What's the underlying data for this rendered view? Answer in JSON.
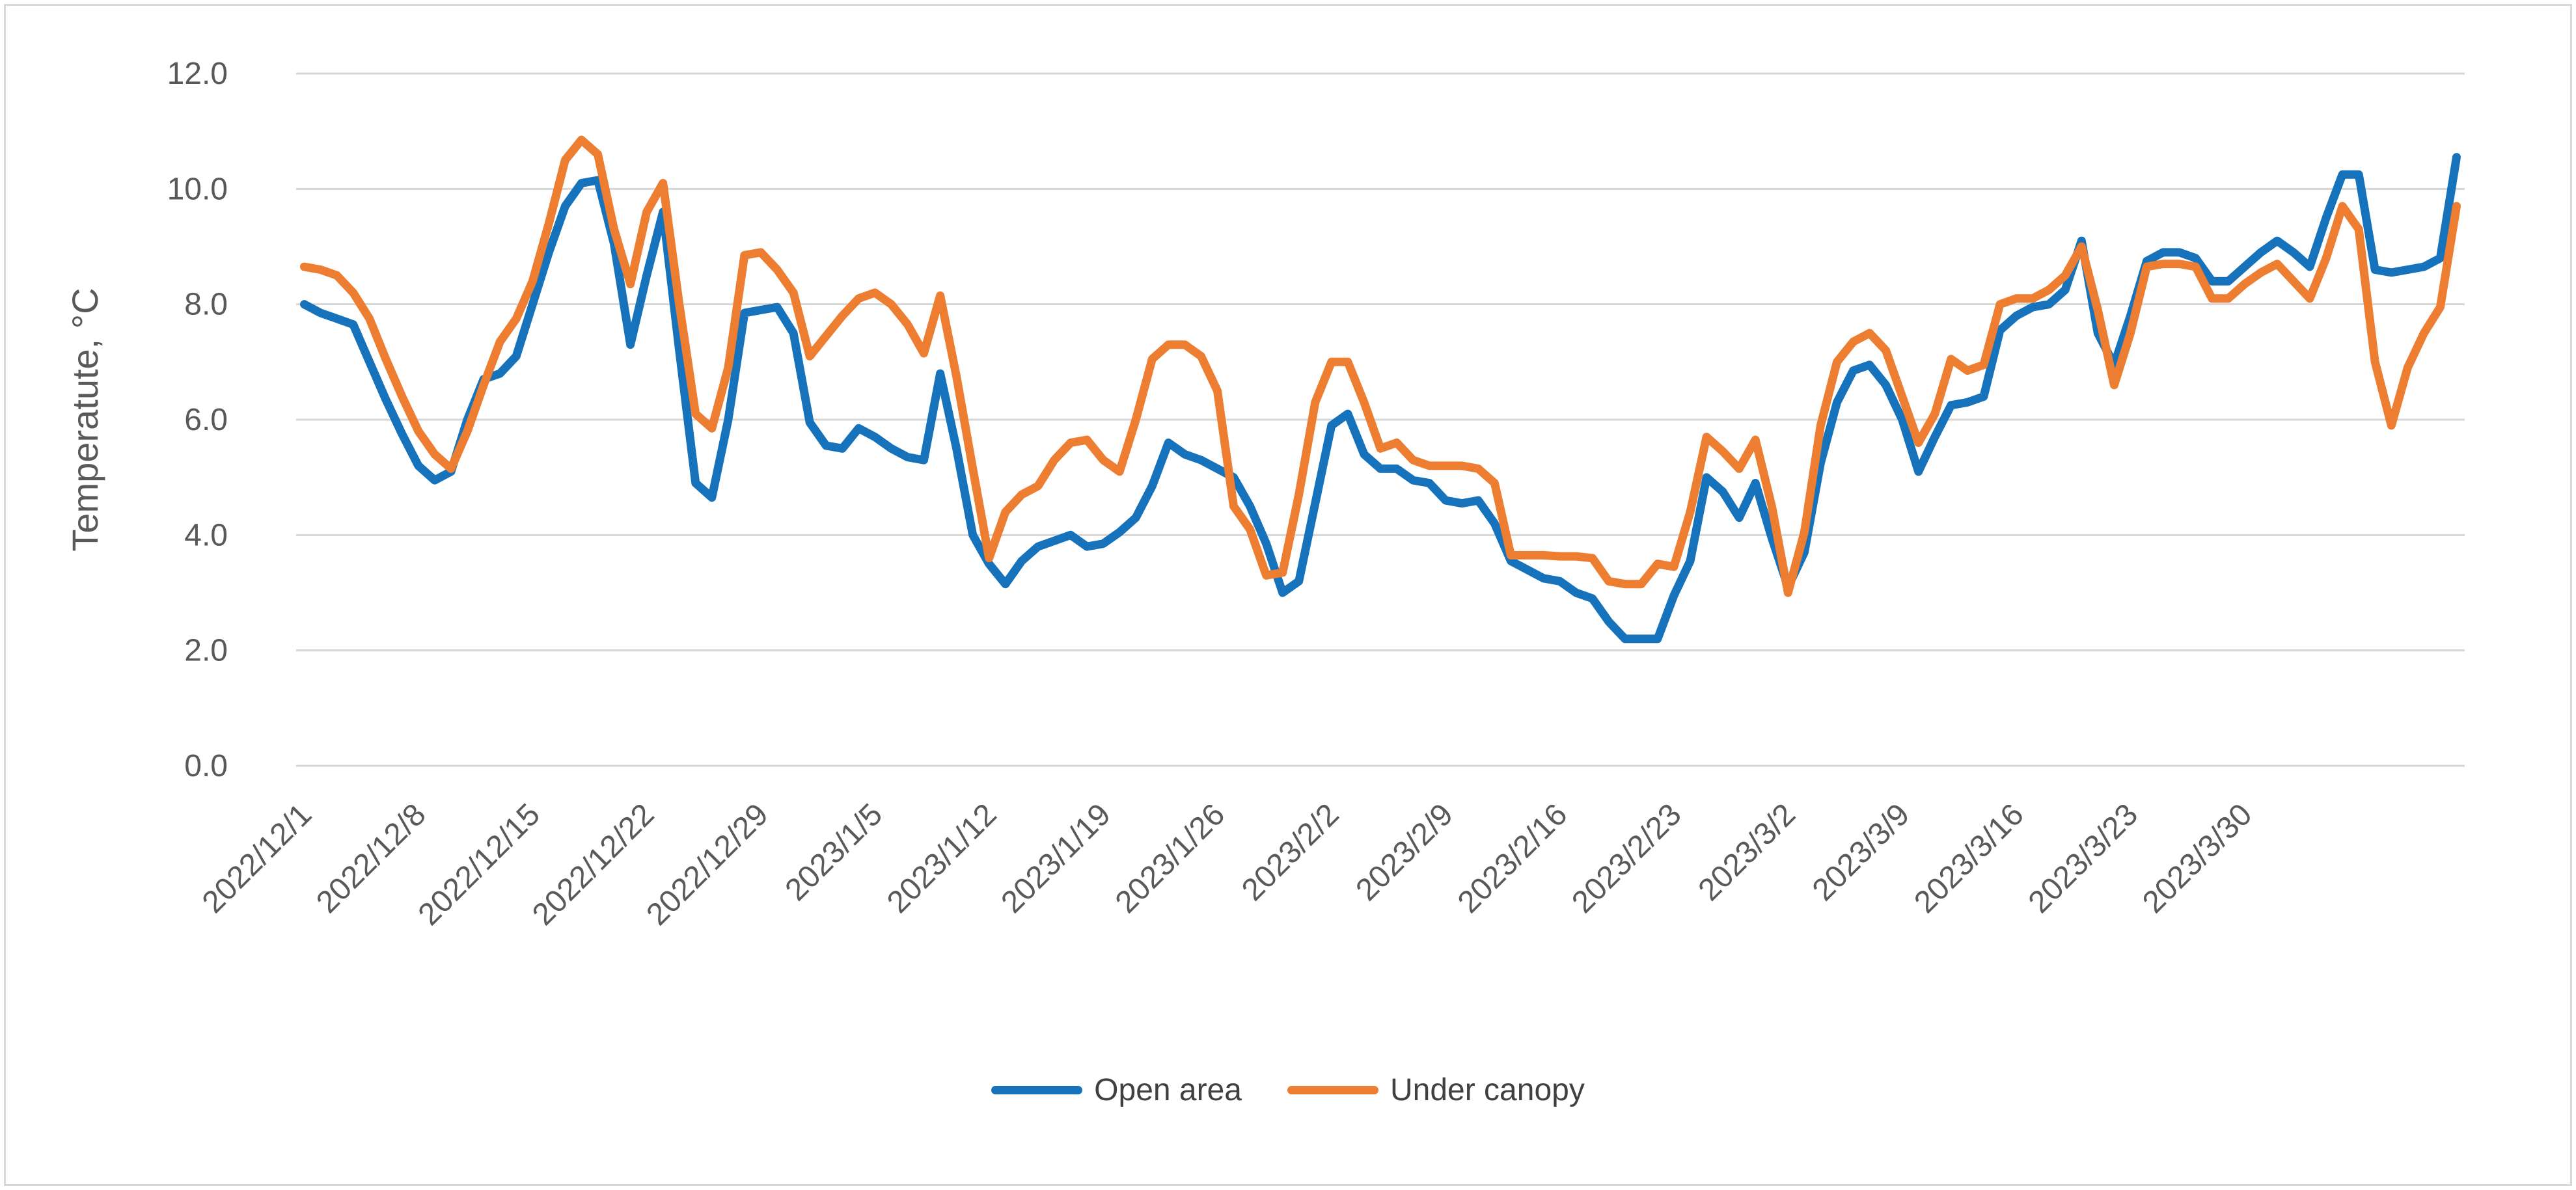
{
  "chart": {
    "background": "#ffffff",
    "border_color": "#d9d9d9",
    "gridline_color": "#d6d6d6",
    "axis_text_color": "#595959",
    "legend_text_color": "#404040",
    "y_axis_title": "Temperatute, °C",
    "y_tick_labels": [
      "12.0",
      "10.0",
      "8.0",
      "6.0",
      "4.0",
      "2.0",
      "0.0"
    ],
    "x_tick_labels": [
      "2022/12/1",
      "2022/12/8",
      "2022/12/15",
      "2022/12/22",
      "2022/12/29",
      "2023/1/5",
      "2023/1/12",
      "2023/1/19",
      "2023/1/26",
      "2023/2/2",
      "2023/2/9",
      "2023/2/16",
      "2023/2/23",
      "2023/3/2",
      "2023/3/9",
      "2023/3/16",
      "2023/3/23",
      "2023/3/30"
    ],
    "legend": {
      "open_area_label": "Open area",
      "under_canopy_label": "Under canopy"
    }
  },
  "chart_data": {
    "type": "line",
    "title": "",
    "xlabel": "",
    "ylabel": "Temperatute, °C",
    "ylim": [
      0,
      12
    ],
    "y_tick_step": 2,
    "grid": "horizontal",
    "legend_position": "bottom",
    "x_start_date": "2022/12/1",
    "x_frequency": "daily",
    "x_tick_every_days": 7,
    "x_tick_indices": [
      0,
      7,
      14,
      21,
      28,
      35,
      42,
      49,
      56,
      63,
      70,
      77,
      84,
      91,
      98,
      105,
      112,
      119
    ],
    "x_tick_labels": [
      "2022/12/1",
      "2022/12/8",
      "2022/12/15",
      "2022/12/22",
      "2022/12/29",
      "2023/1/5",
      "2023/1/12",
      "2023/1/19",
      "2023/1/26",
      "2023/2/2",
      "2023/2/9",
      "2023/2/16",
      "2023/2/23",
      "2023/3/2",
      "2023/3/9",
      "2023/3/16",
      "2023/3/23",
      "2023/3/30"
    ],
    "series": [
      {
        "name": "Open area",
        "color": "#1673bb",
        "values": [
          8.0,
          7.85,
          7.75,
          7.65,
          7.0,
          6.35,
          5.75,
          5.2,
          4.95,
          5.1,
          6.0,
          6.7,
          6.8,
          7.1,
          8.0,
          8.9,
          9.7,
          10.1,
          10.15,
          9.05,
          7.3,
          8.5,
          9.6,
          7.2,
          4.9,
          4.65,
          6.0,
          7.85,
          7.9,
          7.95,
          7.5,
          5.95,
          5.55,
          5.5,
          5.85,
          5.7,
          5.5,
          5.35,
          5.3,
          6.8,
          5.5,
          4.0,
          3.5,
          3.15,
          3.55,
          3.8,
          3.9,
          4.0,
          3.8,
          3.85,
          4.05,
          4.3,
          4.85,
          5.6,
          5.4,
          5.3,
          5.15,
          5.0,
          4.5,
          3.85,
          3.0,
          3.2,
          4.55,
          5.9,
          6.1,
          5.4,
          5.15,
          5.15,
          4.95,
          4.9,
          4.6,
          4.55,
          4.6,
          4.2,
          3.55,
          3.4,
          3.25,
          3.2,
          3.0,
          2.9,
          2.5,
          2.2,
          2.2,
          2.2,
          2.95,
          3.55,
          5.0,
          4.75,
          4.3,
          4.9,
          3.95,
          3.1,
          3.7,
          5.25,
          6.3,
          6.85,
          6.95,
          6.6,
          6.0,
          5.1,
          5.7,
          6.25,
          6.3,
          6.4,
          7.55,
          7.8,
          7.95,
          8.0,
          8.25,
          9.1,
          7.5,
          6.95,
          7.8,
          8.75,
          8.9,
          8.9,
          8.8,
          8.4,
          8.4,
          8.65,
          8.9,
          9.1,
          8.9,
          8.65,
          9.5,
          10.25,
          10.25,
          8.6,
          8.55,
          8.6,
          8.65,
          8.8,
          10.55
        ]
      },
      {
        "name": "Under canopy",
        "color": "#ed7d31",
        "values": [
          8.65,
          8.6,
          8.5,
          8.2,
          7.75,
          7.05,
          6.4,
          5.8,
          5.4,
          5.15,
          5.8,
          6.6,
          7.35,
          7.75,
          8.4,
          9.4,
          10.5,
          10.85,
          10.6,
          9.3,
          8.35,
          9.6,
          10.1,
          8.0,
          6.1,
          5.85,
          6.9,
          8.85,
          8.9,
          8.6,
          8.2,
          7.1,
          7.45,
          7.8,
          8.1,
          8.2,
          8.0,
          7.65,
          7.15,
          8.15,
          6.75,
          5.15,
          3.6,
          4.4,
          4.7,
          4.85,
          5.3,
          5.6,
          5.65,
          5.3,
          5.1,
          6.0,
          7.05,
          7.3,
          7.3,
          7.1,
          6.5,
          4.5,
          4.1,
          3.3,
          3.35,
          4.7,
          6.3,
          7.0,
          7.0,
          6.3,
          5.5,
          5.6,
          5.3,
          5.2,
          5.2,
          5.2,
          5.15,
          4.9,
          3.65,
          3.65,
          3.65,
          3.63,
          3.63,
          3.6,
          3.2,
          3.15,
          3.15,
          3.5,
          3.45,
          4.4,
          5.7,
          5.45,
          5.15,
          5.65,
          4.5,
          3.0,
          4.05,
          5.9,
          7.0,
          7.35,
          7.5,
          7.2,
          6.4,
          5.6,
          6.1,
          7.05,
          6.85,
          6.95,
          8.0,
          8.1,
          8.1,
          8.25,
          8.5,
          9.0,
          7.9,
          6.6,
          7.5,
          8.65,
          8.7,
          8.7,
          8.65,
          8.1,
          8.1,
          8.35,
          8.55,
          8.7,
          8.4,
          8.1,
          8.8,
          9.7,
          9.3,
          7.0,
          5.9,
          6.9,
          7.5,
          7.95,
          9.7
        ]
      }
    ],
    "layout": {
      "plot_left": 455,
      "plot_right": 3787,
      "plot_top": 113,
      "plot_bottom": 1177,
      "line_width": 13
    }
  }
}
